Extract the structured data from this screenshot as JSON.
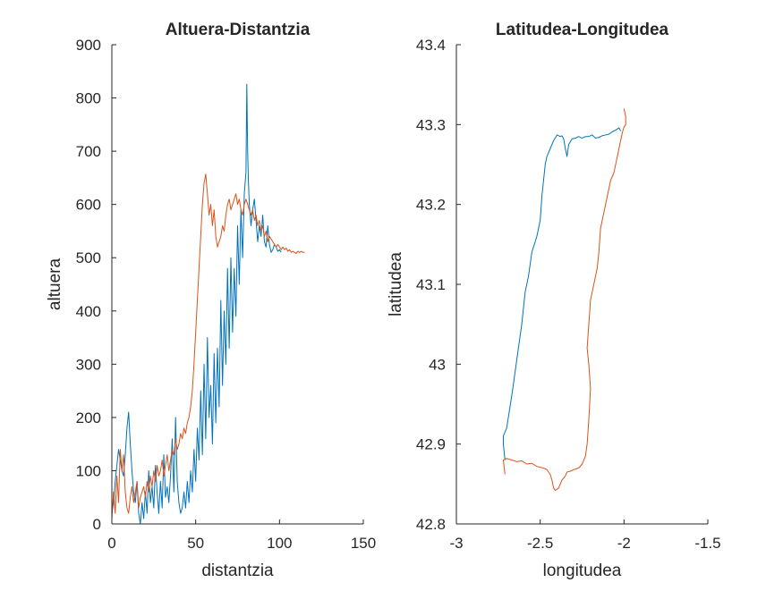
{
  "colors": {
    "series1": "#0072BD",
    "series2": "#D95319",
    "axes": "#262626"
  },
  "chart_data": [
    {
      "type": "line",
      "title": "Altuera-Distantzia",
      "xlabel": "distantzia",
      "ylabel": "altuera",
      "xlim": [
        0,
        150
      ],
      "ylim": [
        0,
        900
      ],
      "xticks": [
        0,
        50,
        100,
        150
      ],
      "yticks": [
        0,
        100,
        200,
        300,
        400,
        500,
        600,
        700,
        800,
        900
      ],
      "xtick_labels": [
        "0",
        "50",
        "100",
        "150"
      ],
      "ytick_labels": [
        "0",
        "100",
        "200",
        "300",
        "400",
        "500",
        "600",
        "700",
        "800",
        "900"
      ],
      "grid": false,
      "series": [
        {
          "color": "#0072BD",
          "x": [
            0,
            1,
            2,
            3,
            4,
            5,
            6,
            7,
            8,
            9,
            10,
            11,
            12,
            13,
            14,
            15,
            16,
            17,
            18,
            19,
            20,
            21,
            22,
            23,
            24,
            25,
            26,
            27,
            28,
            29,
            30,
            31,
            32,
            33,
            34,
            35,
            36,
            37,
            38,
            39,
            40,
            41,
            42,
            43,
            44,
            45,
            46,
            47,
            48,
            49,
            50,
            51,
            52,
            53,
            54,
            55,
            56,
            57,
            58,
            59,
            60,
            61,
            62,
            63,
            64,
            65,
            66,
            67,
            68,
            69,
            70,
            71,
            72,
            73,
            74,
            75,
            76,
            77,
            78,
            79,
            80,
            80.5,
            81,
            81.5,
            82,
            83,
            84,
            85,
            86,
            87,
            88,
            89,
            90,
            91,
            92,
            93,
            94,
            95,
            96,
            97,
            98,
            99,
            100,
            101
          ],
          "y": [
            20,
            40,
            80,
            110,
            140,
            120,
            100,
            90,
            130,
            180,
            210,
            150,
            100,
            60,
            40,
            80,
            20,
            0,
            40,
            10,
            60,
            20,
            100,
            40,
            70,
            30,
            110,
            60,
            20,
            80,
            30,
            130,
            50,
            70,
            40,
            90,
            160,
            60,
            200,
            80,
            40,
            20,
            30,
            60,
            30,
            80,
            40,
            100,
            60,
            140,
            80,
            180,
            120,
            250,
            130,
            300,
            160,
            350,
            200,
            260,
            150,
            320,
            190,
            330,
            220,
            420,
            260,
            400,
            300,
            480,
            330,
            500,
            360,
            480,
            390,
            560,
            450,
            590,
            500,
            620,
            660,
            826,
            700,
            640,
            600,
            560,
            590,
            610,
            570,
            530,
            560,
            540,
            580,
            530,
            520,
            560,
            525,
            510,
            515,
            525,
            520,
            512,
            515,
            510
          ]
        },
        {
          "color": "#D95319",
          "x": [
            0,
            1,
            2,
            3,
            4,
            5,
            6,
            7,
            8,
            9,
            10,
            11,
            12,
            13,
            14,
            15,
            16,
            17,
            18,
            19,
            20,
            21,
            22,
            23,
            24,
            25,
            26,
            27,
            28,
            29,
            30,
            31,
            32,
            33,
            34,
            35,
            36,
            37,
            38,
            39,
            40,
            41,
            42,
            43,
            44,
            45,
            46,
            47,
            48,
            49,
            50,
            51,
            52,
            53,
            54,
            55,
            56,
            57,
            58,
            59,
            60,
            61,
            62,
            63,
            64,
            65,
            66,
            67,
            68,
            69,
            70,
            71,
            72,
            73,
            74,
            75,
            76,
            77,
            78,
            79,
            80,
            81,
            82,
            83,
            84,
            85,
            86,
            87,
            88,
            89,
            90,
            91,
            92,
            93,
            94,
            95,
            96,
            97,
            98,
            99,
            100,
            101,
            102,
            103,
            104,
            105,
            106,
            107,
            108,
            109,
            110,
            111,
            112,
            113,
            114,
            115
          ],
          "y": [
            10,
            60,
            20,
            90,
            40,
            140,
            100,
            130,
            60,
            30,
            20,
            50,
            70,
            40,
            60,
            80,
            30,
            50,
            60,
            70,
            50,
            80,
            60,
            90,
            70,
            100,
            80,
            110,
            90,
            100,
            120,
            90,
            110,
            130,
            100,
            120,
            140,
            130,
            160,
            140,
            150,
            170,
            160,
            180,
            170,
            190,
            200,
            220,
            250,
            300,
            360,
            420,
            480,
            540,
            600,
            640,
            657,
            620,
            580,
            600,
            560,
            590,
            540,
            520,
            530,
            540,
            560,
            550,
            580,
            600,
            610,
            590,
            600,
            610,
            620,
            600,
            610,
            590,
            580,
            600,
            610,
            600,
            590,
            580,
            590,
            570,
            580,
            560,
            570,
            550,
            560,
            540,
            550,
            530,
            540,
            535,
            530,
            525,
            520,
            525,
            520,
            515,
            520,
            515,
            518,
            512,
            515,
            510,
            512,
            510,
            508,
            512,
            510,
            512,
            510,
            510
          ]
        }
      ]
    },
    {
      "type": "line",
      "title": "Latitudea-Longitudea",
      "xlabel": "longitudea",
      "ylabel": "latitudea",
      "xlim": [
        -3,
        -1.5
      ],
      "ylim": [
        42.8,
        43.4
      ],
      "xticks": [
        -3,
        -2.5,
        -2,
        -1.5
      ],
      "yticks": [
        42.8,
        42.9,
        43,
        43.1,
        43.2,
        43.3,
        43.4
      ],
      "xtick_labels": [
        "-3",
        "-2.5",
        "-2",
        "-1.5"
      ],
      "ytick_labels": [
        "42.8",
        "42.9",
        "43",
        "43.1",
        "43.2",
        "43.3",
        "43.4"
      ],
      "grid": false,
      "series": [
        {
          "color": "#0072BD",
          "x": [
            -2.71,
            -2.72,
            -2.72,
            -2.7,
            -2.67,
            -2.65,
            -2.63,
            -2.61,
            -2.59,
            -2.57,
            -2.55,
            -2.52,
            -2.5,
            -2.49,
            -2.48,
            -2.47,
            -2.46,
            -2.45,
            -2.44,
            -2.42,
            -2.4,
            -2.38,
            -2.37,
            -2.36,
            -2.35,
            -2.34,
            -2.33,
            -2.31,
            -2.29,
            -2.27,
            -2.25,
            -2.23,
            -2.21,
            -2.19,
            -2.17,
            -2.15,
            -2.13,
            -2.11,
            -2.09,
            -2.07,
            -2.05,
            -2.03,
            -2.02
          ],
          "y": [
            42.88,
            42.9,
            42.91,
            42.92,
            42.96,
            42.99,
            43.02,
            43.05,
            43.09,
            43.11,
            43.14,
            43.16,
            43.18,
            43.21,
            43.23,
            43.25,
            43.26,
            43.265,
            43.27,
            43.28,
            43.287,
            43.285,
            43.286,
            43.282,
            43.27,
            43.26,
            43.275,
            43.282,
            43.283,
            43.285,
            43.283,
            43.285,
            43.285,
            43.287,
            43.283,
            43.284,
            43.286,
            43.287,
            43.288,
            43.291,
            43.293,
            43.296,
            43.292
          ]
        },
        {
          "color": "#D95319",
          "x": [
            -2.71,
            -2.72,
            -2.7,
            -2.67,
            -2.64,
            -2.61,
            -2.58,
            -2.55,
            -2.52,
            -2.48,
            -2.46,
            -2.44,
            -2.43,
            -2.42,
            -2.41,
            -2.39,
            -2.37,
            -2.35,
            -2.34,
            -2.32,
            -2.3,
            -2.27,
            -2.25,
            -2.23,
            -2.22,
            -2.21,
            -2.2,
            -2.21,
            -2.22,
            -2.21,
            -2.2,
            -2.18,
            -2.16,
            -2.15,
            -2.14,
            -2.12,
            -2.1,
            -2.08,
            -2.06,
            -2.04,
            -2.02,
            -2.01,
            -2.0,
            -1.99,
            -1.99,
            -2.0
          ],
          "y": [
            42.862,
            42.88,
            42.882,
            42.88,
            42.878,
            42.879,
            42.875,
            42.876,
            42.872,
            42.87,
            42.868,
            42.862,
            42.855,
            42.845,
            42.842,
            42.845,
            42.855,
            42.86,
            42.865,
            42.866,
            42.868,
            42.87,
            42.875,
            42.885,
            42.9,
            42.93,
            42.97,
            43.0,
            43.02,
            43.05,
            43.08,
            43.1,
            43.12,
            43.14,
            43.17,
            43.19,
            43.21,
            43.23,
            43.24,
            43.26,
            43.28,
            43.29,
            43.297,
            43.3,
            43.31,
            43.32
          ]
        }
      ]
    }
  ]
}
